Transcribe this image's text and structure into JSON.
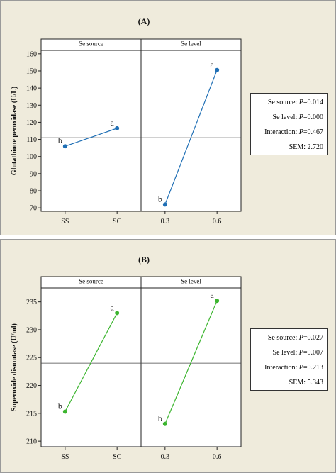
{
  "chart_data": [
    {
      "type": "line",
      "panel_label": "(A)",
      "ylabel": "Glutathione peroxidase (U/L)",
      "ylim": [
        68,
        162
      ],
      "yticks": [
        70,
        80,
        90,
        100,
        110,
        120,
        130,
        140,
        150,
        160
      ],
      "reference_line": 111,
      "facets": [
        {
          "title": "Se source",
          "categories": [
            "SS",
            "SC"
          ],
          "values": [
            106,
            116.5
          ],
          "labels": [
            "b",
            "a"
          ]
        },
        {
          "title": "Se level",
          "categories": [
            "0.3",
            "0.6"
          ],
          "values": [
            72,
            150.5
          ],
          "labels": [
            "b",
            "a"
          ]
        }
      ],
      "color": "#1f6fb5",
      "stats": [
        {
          "name": "Se source:",
          "p": "P",
          "value": "=0.014"
        },
        {
          "name": "Se level:",
          "p": "P",
          "value": "=0.000"
        },
        {
          "name": "Interaction:",
          "p": "P",
          "value": "=0.467"
        },
        {
          "name": "SEM:",
          "p": "",
          "value": "2.720"
        }
      ]
    },
    {
      "type": "line",
      "panel_label": "(B)",
      "ylabel": "Superoxide dismutase (U/ml)",
      "ylim": [
        209,
        237.5
      ],
      "yticks": [
        210,
        215,
        220,
        225,
        230,
        235
      ],
      "reference_line": 224,
      "facets": [
        {
          "title": "Se source",
          "categories": [
            "SS",
            "SC"
          ],
          "values": [
            215.3,
            233
          ],
          "labels": [
            "b",
            "a"
          ]
        },
        {
          "title": "Se level",
          "categories": [
            "0.3",
            "0.6"
          ],
          "values": [
            213.1,
            235.2
          ],
          "labels": [
            "b",
            "a"
          ]
        }
      ],
      "color": "#3cb52f",
      "stats": [
        {
          "name": "Se source:",
          "p": "P",
          "value": "=0.027"
        },
        {
          "name": "Se level:",
          "p": "P",
          "value": "=0.007"
        },
        {
          "name": "Interaction:",
          "p": "P",
          "value": "=0.213"
        },
        {
          "name": "SEM:",
          "p": "",
          "value": "5.343"
        }
      ]
    }
  ]
}
